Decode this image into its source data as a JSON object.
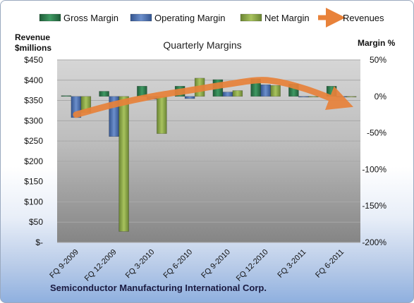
{
  "chart_data": {
    "type": "bar",
    "title": "Quarterly Margins",
    "footer": "Semiconductor Manufacturing International Corp.",
    "y_left_label_line1": "Revenue",
    "y_left_label_line2": "$millions",
    "y_right_label": "Margin %",
    "categories": [
      "FQ 9-2009",
      "FQ 12-2009",
      "FQ 3-2010",
      "FQ 6-2010",
      "FQ 9-2010",
      "FQ 12-2010",
      "FQ 3-2011",
      "FQ 6-2011"
    ],
    "left_axis": {
      "range": [
        0,
        450
      ],
      "ticks": [
        0,
        50,
        100,
        150,
        200,
        250,
        300,
        350,
        400,
        450
      ],
      "tick_labels": [
        "$-",
        "$50",
        "$100",
        "$150",
        "$200",
        "$250",
        "$300",
        "$350",
        "$400",
        "$450"
      ]
    },
    "right_axis": {
      "range": [
        -200,
        50
      ],
      "ticks": [
        50,
        0,
        -50,
        -100,
        -150,
        -200
      ],
      "tick_labels": [
        "50%",
        "0%",
        "-50%",
        "-100%",
        "-150%",
        "-200%"
      ]
    },
    "series": [
      {
        "name": "Gross Margin",
        "axis": "right",
        "color": "#2e7d4f",
        "values": [
          1,
          7,
          14,
          14,
          23,
          24,
          17,
          14
        ]
      },
      {
        "name": "Operating Margin",
        "axis": "right",
        "color": "#4f73b0",
        "values": [
          -29,
          -55,
          -4,
          -3,
          6,
          16,
          -1,
          0
        ]
      },
      {
        "name": "Net Margin",
        "axis": "right",
        "color": "#8ea84a",
        "values": [
          -22,
          -185,
          -51,
          25,
          8,
          15,
          0,
          0
        ]
      },
      {
        "name": "Revenues",
        "axis": "left",
        "type": "line",
        "color": "#e8823a",
        "values": [
          315,
          340,
          360,
          375,
          390,
          400,
          380,
          345
        ]
      }
    ],
    "grid": true,
    "legend": "top"
  }
}
